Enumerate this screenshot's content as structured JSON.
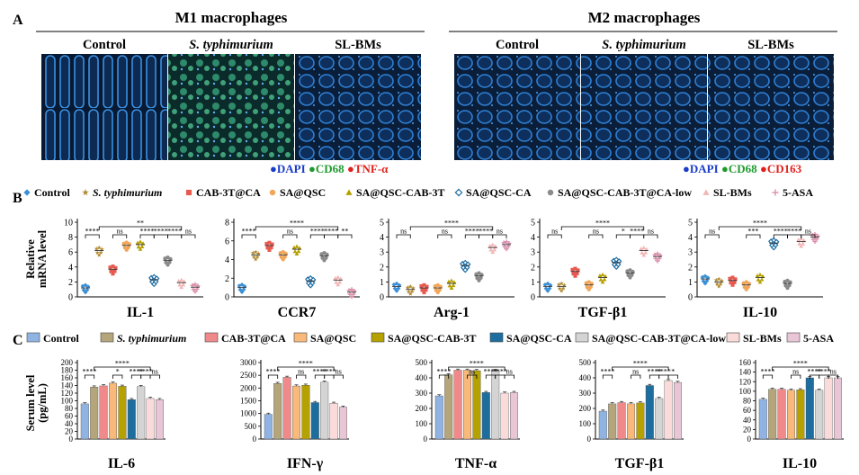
{
  "panel_letters": [
    "A",
    "B",
    "C"
  ],
  "panelA": {
    "groups": [
      {
        "title": "M1 macrophages",
        "images": [
          "Control",
          "S. typhimurium",
          "SL-BMs"
        ],
        "legend": [
          {
            "text": "DAPI",
            "color": "#1a3cc8"
          },
          {
            "text": "CD68",
            "color": "#1f9a2e"
          },
          {
            "text": "TNF-α",
            "color": "#e0201a"
          }
        ]
      },
      {
        "title": "M2 macrophages",
        "images": [
          "Control",
          "S. typhimurium",
          "SL-BMs"
        ],
        "legend": [
          {
            "text": "DAPI",
            "color": "#1a3cc8"
          },
          {
            "text": "CD68",
            "color": "#1f9a2e"
          },
          {
            "text": "CD163",
            "color": "#e0201a"
          }
        ]
      }
    ],
    "bullet": "●"
  },
  "panelB": {
    "legend": [
      {
        "label": "Control",
        "color": "#3b8fd6",
        "marker": "diamond"
      },
      {
        "label": "S. typhimurium",
        "color": "#b08a2e",
        "marker": "star"
      },
      {
        "label": "CAB-3T@CA",
        "color": "#e65a50",
        "marker": "square"
      },
      {
        "label": "SA@QSC",
        "color": "#f2a65a",
        "marker": "circle"
      },
      {
        "label": "SA@QSC-CAB-3T",
        "color": "#b5a000",
        "marker": "triangle"
      },
      {
        "label": "SA@QSC-CA",
        "color": "#1f6fa6",
        "marker": "diamond-open"
      },
      {
        "label": "SA@QSC-CAB-3T@CA-low",
        "color": "#8a8a8a",
        "marker": "circle"
      },
      {
        "label": "SL-BMs",
        "color": "#f2b6b6",
        "marker": "triangle"
      },
      {
        "label": "5-ASA",
        "color": "#d98aa8",
        "marker": "plus"
      }
    ],
    "ylabel": [
      "Relative",
      "mRNA level"
    ]
  },
  "panelC": {
    "legend": [
      {
        "label": "Control",
        "color": "#8fb3e3"
      },
      {
        "label": "S. typhimurium",
        "color": "#b5a57a"
      },
      {
        "label": "CAB-3T@CA",
        "color": "#f08a8a"
      },
      {
        "label": "SA@QSC",
        "color": "#f8b97a"
      },
      {
        "label": "SA@QSC-CAB-3T",
        "color": "#b5a100"
      },
      {
        "label": "SA@QSC-CA",
        "color": "#1d6e9e"
      },
      {
        "label": "SA@QSC-CAB-3T@CA-low",
        "color": "#d4d4d4"
      },
      {
        "label": "SL-BMs",
        "color": "#fbdada"
      },
      {
        "label": "5-ASA",
        "color": "#e8c6d6"
      }
    ],
    "ylabel": [
      "Serum level",
      "(pg/mL)"
    ]
  },
  "chart_data": [
    {
      "type": "scatter",
      "title": "IL-1",
      "ylim": [
        0,
        10
      ],
      "yticks": [
        0,
        2,
        4,
        6,
        8,
        10
      ],
      "means": [
        1.2,
        6.2,
        3.7,
        6.9,
        7.0,
        2.3,
        4.9,
        1.9,
        1.3
      ],
      "brackets": [
        {
          "from": 0,
          "to": 1,
          "label": "****",
          "tier": 0
        },
        {
          "from": 2,
          "to": 3,
          "label": "ns",
          "tier": 0
        },
        {
          "from": 4,
          "to": 5,
          "label": "****",
          "tier": 0
        },
        {
          "from": 5,
          "to": 6,
          "label": "****",
          "tier": 0
        },
        {
          "from": 6,
          "to": 7,
          "label": "****",
          "tier": 0
        },
        {
          "from": 7,
          "to": 8,
          "label": "ns",
          "tier": 0
        },
        {
          "from": 1,
          "to": 7,
          "label": "**",
          "tier": 1
        }
      ]
    },
    {
      "type": "scatter",
      "title": "CCR7",
      "ylim": [
        0,
        8
      ],
      "yticks": [
        0,
        2,
        4,
        6,
        8
      ],
      "means": [
        1.0,
        4.5,
        5.5,
        4.5,
        5.1,
        1.7,
        4.4,
        1.8,
        0.5
      ],
      "brackets": [
        {
          "from": 0,
          "to": 1,
          "label": "****",
          "tier": 0
        },
        {
          "from": 3,
          "to": 4,
          "label": "ns",
          "tier": 0
        },
        {
          "from": 5,
          "to": 6,
          "label": "****",
          "tier": 0
        },
        {
          "from": 6,
          "to": 7,
          "label": "****",
          "tier": 0
        },
        {
          "from": 7,
          "to": 8,
          "label": "**",
          "tier": 0
        },
        {
          "from": 1,
          "to": 7,
          "label": "****",
          "tier": 1
        }
      ]
    },
    {
      "type": "scatter",
      "title": "Arg-1",
      "ylim": [
        0,
        5
      ],
      "yticks": [
        0,
        1,
        2,
        3,
        4,
        5
      ],
      "means": [
        0.7,
        0.5,
        0.6,
        0.6,
        0.9,
        2.1,
        1.4,
        3.3,
        3.5
      ],
      "brackets": [
        {
          "from": 0,
          "to": 1,
          "label": "ns",
          "tier": 0
        },
        {
          "from": 3,
          "to": 4,
          "label": "ns",
          "tier": 0
        },
        {
          "from": 5,
          "to": 6,
          "label": "****",
          "tier": 0
        },
        {
          "from": 6,
          "to": 7,
          "label": "****",
          "tier": 0
        },
        {
          "from": 7,
          "to": 8,
          "label": "ns",
          "tier": 0
        },
        {
          "from": 1,
          "to": 7,
          "label": "****",
          "tier": 1
        }
      ]
    },
    {
      "type": "scatter",
      "title": "TGF-β1",
      "ylim": [
        0,
        5
      ],
      "yticks": [
        0,
        1,
        2,
        3,
        4,
        5
      ],
      "means": [
        0.7,
        0.7,
        1.7,
        0.8,
        1.3,
        2.3,
        1.6,
        3.1,
        2.7
      ],
      "brackets": [
        {
          "from": 0,
          "to": 1,
          "label": "ns",
          "tier": 0
        },
        {
          "from": 3,
          "to": 4,
          "label": "ns",
          "tier": 0
        },
        {
          "from": 5,
          "to": 6,
          "label": "*",
          "tier": 0
        },
        {
          "from": 6,
          "to": 7,
          "label": "****",
          "tier": 0
        },
        {
          "from": 7,
          "to": 8,
          "label": "ns",
          "tier": 0
        },
        {
          "from": 1,
          "to": 7,
          "label": "****",
          "tier": 1
        }
      ]
    },
    {
      "type": "scatter",
      "title": "IL-10",
      "ylim": [
        0,
        5
      ],
      "yticks": [
        0,
        1,
        2,
        3,
        4,
        5
      ],
      "means": [
        1.2,
        1.0,
        1.1,
        0.8,
        1.3,
        3.6,
        0.9,
        3.7,
        4.0
      ],
      "brackets": [
        {
          "from": 0,
          "to": 1,
          "label": "ns",
          "tier": 0
        },
        {
          "from": 3,
          "to": 4,
          "label": "***",
          "tier": 0
        },
        {
          "from": 5,
          "to": 6,
          "label": "****",
          "tier": 0
        },
        {
          "from": 6,
          "to": 7,
          "label": "****",
          "tier": 0
        },
        {
          "from": 7,
          "to": 8,
          "label": "ns",
          "tier": 0
        },
        {
          "from": 1,
          "to": 7,
          "label": "****",
          "tier": 1
        }
      ]
    },
    {
      "type": "bar",
      "title": "IL-6",
      "ylim": [
        0,
        200
      ],
      "yticks": [
        0,
        20,
        40,
        60,
        80,
        100,
        120,
        140,
        160,
        180,
        200
      ],
      "values": [
        92,
        136,
        139,
        146,
        138,
        103,
        137,
        106,
        103
      ],
      "brackets": [
        {
          "from": 0,
          "to": 1,
          "label": "****",
          "tier": 0
        },
        {
          "from": 3,
          "to": 4,
          "label": "*",
          "tier": 0
        },
        {
          "from": 5,
          "to": 6,
          "label": "****",
          "tier": 0
        },
        {
          "from": 6,
          "to": 7,
          "label": "****",
          "tier": 0
        },
        {
          "from": 7,
          "to": 8,
          "label": "ns",
          "tier": 0
        },
        {
          "from": 1,
          "to": 7,
          "label": "****",
          "tier": 1
        }
      ]
    },
    {
      "type": "bar",
      "title": "IFN-γ",
      "ylim": [
        0,
        3000
      ],
      "yticks": [
        0,
        500,
        1000,
        1500,
        2000,
        2500,
        3000
      ],
      "values": [
        970,
        2180,
        2420,
        2080,
        2110,
        1430,
        2230,
        1400,
        1250
      ],
      "brackets": [
        {
          "from": 0,
          "to": 1,
          "label": "****",
          "tier": 0
        },
        {
          "from": 3,
          "to": 4,
          "label": "ns",
          "tier": 0
        },
        {
          "from": 5,
          "to": 6,
          "label": "****",
          "tier": 0
        },
        {
          "from": 6,
          "to": 7,
          "label": "****",
          "tier": 0
        },
        {
          "from": 7,
          "to": 8,
          "label": "ns",
          "tier": 0
        },
        {
          "from": 1,
          "to": 7,
          "label": "****",
          "tier": 1
        }
      ]
    },
    {
      "type": "bar",
      "title": "TNF-α",
      "ylim": [
        0,
        500
      ],
      "yticks": [
        0,
        100,
        200,
        300,
        400,
        500
      ],
      "values": [
        282,
        420,
        450,
        450,
        447,
        304,
        447,
        300,
        304
      ],
      "brackets": [
        {
          "from": 0,
          "to": 1,
          "label": "****",
          "tier": 0
        },
        {
          "from": 3,
          "to": 4,
          "label": "ns",
          "tier": 0
        },
        {
          "from": 5,
          "to": 6,
          "label": "****",
          "tier": 0
        },
        {
          "from": 6,
          "to": 7,
          "label": "****",
          "tier": 0
        },
        {
          "from": 7,
          "to": 8,
          "label": "ns",
          "tier": 0
        },
        {
          "from": 1,
          "to": 7,
          "label": "****",
          "tier": 1
        }
      ]
    },
    {
      "type": "bar",
      "title": "TGF-β1",
      "ylim": [
        0,
        500
      ],
      "yticks": [
        0,
        100,
        200,
        300,
        400,
        500
      ],
      "values": [
        182,
        230,
        238,
        230,
        236,
        350,
        265,
        382,
        370
      ],
      "brackets": [
        {
          "from": 0,
          "to": 1,
          "label": "****",
          "tier": 0
        },
        {
          "from": 3,
          "to": 4,
          "label": "ns",
          "tier": 0
        },
        {
          "from": 5,
          "to": 6,
          "label": "****",
          "tier": 0
        },
        {
          "from": 6,
          "to": 7,
          "label": "****",
          "tier": 0
        },
        {
          "from": 7,
          "to": 8,
          "label": "*",
          "tier": 0
        },
        {
          "from": 1,
          "to": 7,
          "label": "****",
          "tier": 1
        }
      ]
    },
    {
      "type": "bar",
      "title": "IL-10",
      "ylim": [
        0,
        160
      ],
      "yticks": [
        0,
        20,
        40,
        60,
        80,
        100,
        120,
        140,
        160
      ],
      "values": [
        83,
        104,
        104,
        102,
        103,
        128,
        102,
        128,
        128
      ],
      "brackets": [
        {
          "from": 0,
          "to": 1,
          "label": "****",
          "tier": 0
        },
        {
          "from": 3,
          "to": 4,
          "label": "ns",
          "tier": 0
        },
        {
          "from": 5,
          "to": 6,
          "label": "****",
          "tier": 0
        },
        {
          "from": 6,
          "to": 7,
          "label": "****",
          "tier": 0
        },
        {
          "from": 7,
          "to": 8,
          "label": "ns",
          "tier": 0
        },
        {
          "from": 1,
          "to": 7,
          "label": "****",
          "tier": 1
        }
      ]
    }
  ]
}
